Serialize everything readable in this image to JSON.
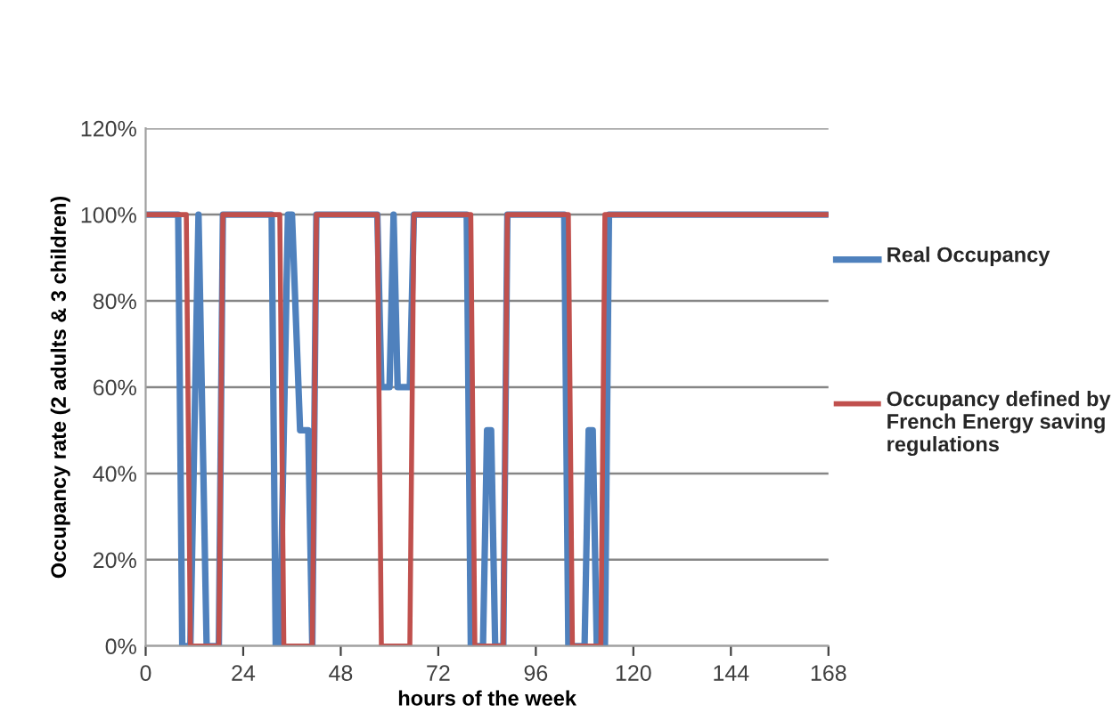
{
  "chart_data": {
    "type": "line",
    "xlabel": "hours of the week",
    "ylabel": "Occupancy rate (2 adults & 3 children)",
    "xlim": [
      0,
      168
    ],
    "xticks": [
      0,
      24,
      48,
      72,
      96,
      120,
      144,
      168
    ],
    "ylim": [
      0,
      120
    ],
    "yticks": [
      {
        "value": 0,
        "label": "0%"
      },
      {
        "value": 20,
        "label": "20%"
      },
      {
        "value": 40,
        "label": "40%"
      },
      {
        "value": 60,
        "label": "60%"
      },
      {
        "value": 80,
        "label": "80%"
      },
      {
        "value": 100,
        "label": "100%"
      },
      {
        "value": 120,
        "label": "120%"
      }
    ],
    "grid": "y",
    "legend": "right",
    "marker": "none",
    "line_style": "solid",
    "series": [
      {
        "name": "Real Occupancy",
        "color": "#4f81bd",
        "x": [
          0,
          8,
          9,
          11,
          13,
          15,
          18,
          19,
          31,
          32,
          33,
          35,
          36,
          38,
          40,
          41,
          42,
          57,
          58,
          60,
          61,
          62,
          65,
          66,
          79,
          80,
          83,
          84,
          85,
          86,
          88,
          89,
          103,
          104,
          108,
          109,
          110,
          111,
          113,
          114,
          168
        ],
        "values": [
          100,
          100,
          0,
          0,
          100,
          0,
          0,
          100,
          100,
          0,
          0,
          100,
          100,
          50,
          50,
          0,
          100,
          100,
          60,
          60,
          100,
          60,
          60,
          100,
          100,
          0,
          0,
          50,
          50,
          0,
          0,
          100,
          100,
          0,
          0,
          50,
          50,
          0,
          0,
          100,
          100
        ]
      },
      {
        "name": "Occupancy defined by French Energy saving regulations",
        "color": "#c0504d",
        "x": [
          0,
          10,
          11,
          18,
          19,
          33,
          34,
          41,
          42,
          57,
          58,
          65,
          66,
          80,
          81,
          88,
          89,
          104,
          105,
          112,
          113,
          168
        ],
        "values": [
          100,
          100,
          0,
          0,
          100,
          100,
          0,
          0,
          100,
          100,
          0,
          0,
          100,
          100,
          0,
          0,
          100,
          100,
          0,
          0,
          100,
          100
        ]
      }
    ]
  }
}
